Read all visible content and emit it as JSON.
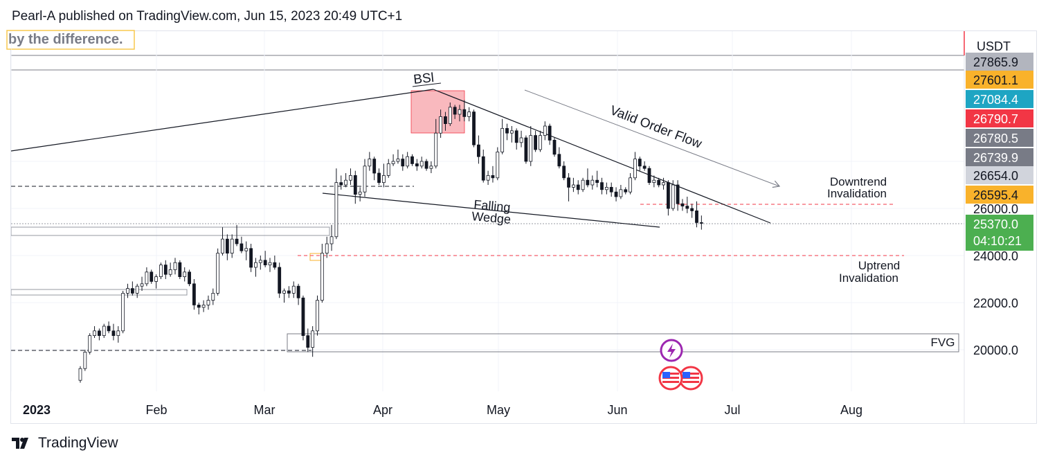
{
  "header": {
    "publisher_line": "Pearl-A published on TradingView.com, Jun 15, 2023 20:49 UTC+1"
  },
  "note_text": "by the difference.",
  "footer": {
    "brand": "TradingView"
  },
  "icons": {
    "logo": "tradingview-logo-icon",
    "event": "lightning-icon",
    "flag": "us-flag-icon"
  },
  "colors": {
    "up": "#131722",
    "down": "#131722",
    "up_fill": "#ffffff",
    "down_fill": "#131722",
    "red_dashed": "#f23645",
    "bsl_box": "#f7a1a8",
    "grid": "#f0f3fa"
  },
  "annotations": {
    "bsl": "BSl",
    "valid_order_flow": "Valid Order Flow",
    "falling": "Falling",
    "wedge": "Wedge",
    "downtrend_1": "Downtrend",
    "downtrend_2": "Invalidation",
    "uptrend_1": "Uptrend",
    "uptrend_2": "Invalidation",
    "fvg": "FVG"
  },
  "chart_data": {
    "type": "candlestick",
    "currency": "USDT",
    "x_labels": [
      "2023",
      "Feb",
      "Mar",
      "Apr",
      "May",
      "Jun",
      "Jul",
      "Aug"
    ],
    "y_ticks": [
      26000,
      24000,
      22000,
      20000
    ],
    "y_tick_labels": [
      "26000.0",
      "24000.0",
      "22000.0",
      "20000.0"
    ],
    "price_labels": [
      {
        "value": 27865.9,
        "text": "27865.9",
        "color": "#b2b5be"
      },
      {
        "value": 27601.1,
        "text": "27601.1",
        "color": "#f9b22b"
      },
      {
        "value": 27084.4,
        "text": "27084.4",
        "color": "#1ea5c3"
      },
      {
        "value": 26790.7,
        "text": "26790.7",
        "color": "#f23645"
      },
      {
        "value": 26780.5,
        "text": "26780.5",
        "color": "#787b86"
      },
      {
        "value": 26739.9,
        "text": "26739.9",
        "color": "#787b86"
      },
      {
        "value": 26654.0,
        "text": "26654.0",
        "color": "#d1d4dc"
      },
      {
        "value": 26595.4,
        "text": "26595.4",
        "color": "#f9b22b"
      }
    ],
    "last_price": {
      "value": 25370.0,
      "text": "25370.0",
      "countdown": "04:10:21",
      "color": "#4caf50"
    },
    "levels": {
      "downtrend_invalidation": 26050,
      "uptrend_invalidation": 24000,
      "prior_high_dashed": 26940
    },
    "candles": [
      [
        18700,
        19300,
        18600,
        19200
      ],
      [
        19200,
        20000,
        19100,
        19900
      ],
      [
        19900,
        20700,
        19800,
        20600
      ],
      [
        20600,
        21000,
        20500,
        20800
      ],
      [
        20800,
        20900,
        20400,
        20600
      ],
      [
        20600,
        21100,
        20500,
        21000
      ],
      [
        21000,
        21200,
        20700,
        20800
      ],
      [
        20800,
        21100,
        20400,
        20600
      ],
      [
        20600,
        21000,
        20300,
        20800
      ],
      [
        20800,
        22500,
        20700,
        22400
      ],
      [
        22400,
        22800,
        22200,
        22600
      ],
      [
        22600,
        22900,
        22300,
        22400
      ],
      [
        22400,
        22800,
        22200,
        22700
      ],
      [
        22700,
        23100,
        22500,
        22800
      ],
      [
        22800,
        23500,
        22700,
        23300
      ],
      [
        23300,
        23400,
        22800,
        22900
      ],
      [
        22900,
        23200,
        22600,
        23100
      ],
      [
        23100,
        23700,
        23000,
        23600
      ],
      [
        23600,
        23800,
        23000,
        23200
      ],
      [
        23200,
        23700,
        23100,
        23400
      ],
      [
        23400,
        23900,
        23200,
        23700
      ],
      [
        23700,
        23800,
        23000,
        23100
      ],
      [
        23100,
        23500,
        22900,
        23300
      ],
      [
        23300,
        23400,
        22700,
        22800
      ],
      [
        22800,
        23000,
        21700,
        21900
      ],
      [
        21900,
        22000,
        21500,
        21800
      ],
      [
        21800,
        22100,
        21600,
        21900
      ],
      [
        21900,
        22300,
        21700,
        22100
      ],
      [
        22100,
        22600,
        21900,
        22400
      ],
      [
        22400,
        24300,
        22300,
        24100
      ],
      [
        24100,
        25200,
        24000,
        24700
      ],
      [
        24700,
        24900,
        23800,
        24100
      ],
      [
        24100,
        24900,
        23900,
        24700
      ],
      [
        24700,
        25300,
        24400,
        24500
      ],
      [
        24500,
        24800,
        24100,
        24200
      ],
      [
        24200,
        24600,
        23800,
        24300
      ],
      [
        24300,
        24500,
        23300,
        23500
      ],
      [
        23500,
        23900,
        23100,
        23700
      ],
      [
        23700,
        24000,
        23400,
        23800
      ],
      [
        23800,
        24200,
        23500,
        23600
      ],
      [
        23600,
        23900,
        23300,
        23700
      ],
      [
        23700,
        24000,
        23400,
        23500
      ],
      [
        23500,
        23700,
        22200,
        22400
      ],
      [
        22400,
        22600,
        22000,
        22500
      ],
      [
        22500,
        22700,
        22200,
        22400
      ],
      [
        22400,
        22900,
        22200,
        22700
      ],
      [
        22700,
        22800,
        21900,
        22200
      ],
      [
        22200,
        22300,
        20400,
        20600
      ],
      [
        20600,
        20900,
        19900,
        20100
      ],
      [
        20100,
        21000,
        19700,
        20800
      ],
      [
        20800,
        22300,
        20600,
        22100
      ],
      [
        22100,
        24500,
        22000,
        24100
      ],
      [
        24100,
        24800,
        23900,
        24500
      ],
      [
        24500,
        25300,
        24200,
        24800
      ],
      [
        24800,
        27700,
        24700,
        27100
      ],
      [
        27100,
        27400,
        26800,
        27000
      ],
      [
        27000,
        27500,
        26900,
        27200
      ],
      [
        27200,
        27700,
        27000,
        27400
      ],
      [
        27400,
        27600,
        26200,
        26600
      ],
      [
        26600,
        26900,
        26300,
        26700
      ],
      [
        26700,
        28100,
        26500,
        27800
      ],
      [
        27800,
        28400,
        27600,
        28100
      ],
      [
        28100,
        28200,
        27200,
        27500
      ],
      [
        27500,
        27700,
        27000,
        27100
      ],
      [
        27100,
        27900,
        26900,
        27400
      ],
      [
        27400,
        28100,
        27300,
        27900
      ],
      [
        27900,
        28300,
        27800,
        28000
      ],
      [
        28000,
        28500,
        27900,
        28100
      ],
      [
        28100,
        28300,
        27600,
        27800
      ],
      [
        27800,
        28400,
        27700,
        28200
      ],
      [
        28200,
        28300,
        27800,
        27900
      ],
      [
        27900,
        28100,
        27600,
        27800
      ],
      [
        27800,
        28200,
        27700,
        28000
      ],
      [
        28000,
        28100,
        27600,
        27700
      ],
      [
        27700,
        28000,
        27500,
        27800
      ],
      [
        27800,
        29800,
        27700,
        29200
      ],
      [
        29200,
        30200,
        29000,
        29900
      ],
      [
        29900,
        30100,
        29300,
        29600
      ],
      [
        29600,
        30500,
        29500,
        30300
      ],
      [
        30300,
        30400,
        29800,
        30000
      ],
      [
        30000,
        30400,
        29700,
        30200
      ],
      [
        30200,
        30600,
        29700,
        29900
      ],
      [
        29900,
        30300,
        29700,
        30100
      ],
      [
        30100,
        30200,
        28600,
        28700
      ],
      [
        28700,
        29100,
        27900,
        28200
      ],
      [
        28200,
        28500,
        27100,
        27200
      ],
      [
        27200,
        27600,
        27000,
        27400
      ],
      [
        27400,
        27800,
        27100,
        27300
      ],
      [
        27300,
        28600,
        27200,
        28400
      ],
      [
        28400,
        29800,
        28300,
        29400
      ],
      [
        29400,
        29600,
        28900,
        29200
      ],
      [
        29200,
        29500,
        28800,
        29300
      ],
      [
        29300,
        29400,
        28500,
        28800
      ],
      [
        28800,
        29300,
        28600,
        29000
      ],
      [
        29000,
        29100,
        27900,
        28000
      ],
      [
        28000,
        29500,
        27800,
        29100
      ],
      [
        29100,
        29300,
        28400,
        28500
      ],
      [
        28500,
        29300,
        28400,
        29100
      ],
      [
        29100,
        29700,
        28900,
        29500
      ],
      [
        29500,
        29600,
        28700,
        28900
      ],
      [
        28900,
        29000,
        28200,
        28300
      ],
      [
        28300,
        28600,
        27700,
        27800
      ],
      [
        27800,
        28000,
        27200,
        27300
      ],
      [
        27300,
        27500,
        26300,
        26900
      ],
      [
        26900,
        27300,
        26700,
        27000
      ],
      [
        27000,
        27200,
        26600,
        26800
      ],
      [
        26800,
        27300,
        26700,
        27200
      ],
      [
        27200,
        27700,
        26900,
        27000
      ],
      [
        27000,
        27400,
        26800,
        27200
      ],
      [
        27200,
        27600,
        26900,
        27100
      ],
      [
        27100,
        27300,
        26600,
        26800
      ],
      [
        26800,
        27100,
        26600,
        26900
      ],
      [
        26900,
        27100,
        26500,
        26700
      ],
      [
        26700,
        26900,
        26300,
        26500
      ],
      [
        26500,
        27000,
        26400,
        26800
      ],
      [
        26800,
        26900,
        26600,
        26700
      ],
      [
        26700,
        27500,
        26600,
        27300
      ],
      [
        27300,
        28400,
        27200,
        28100
      ],
      [
        28100,
        28200,
        27600,
        27800
      ],
      [
        27800,
        28000,
        27600,
        27700
      ],
      [
        27700,
        27800,
        27000,
        27100
      ],
      [
        27100,
        27400,
        26900,
        27200
      ],
      [
        27200,
        27300,
        26900,
        27000
      ],
      [
        27000,
        27300,
        26800,
        27100
      ],
      [
        27100,
        27200,
        25700,
        26000
      ],
      [
        26000,
        27200,
        25900,
        27000
      ],
      [
        27000,
        27200,
        25900,
        26200
      ],
      [
        26200,
        26400,
        25900,
        26100
      ],
      [
        26100,
        26500,
        25800,
        26000
      ],
      [
        26000,
        26200,
        25600,
        25900
      ],
      [
        25900,
        26300,
        25200,
        25400
      ],
      [
        25400,
        25700,
        25100,
        25370
      ]
    ]
  }
}
